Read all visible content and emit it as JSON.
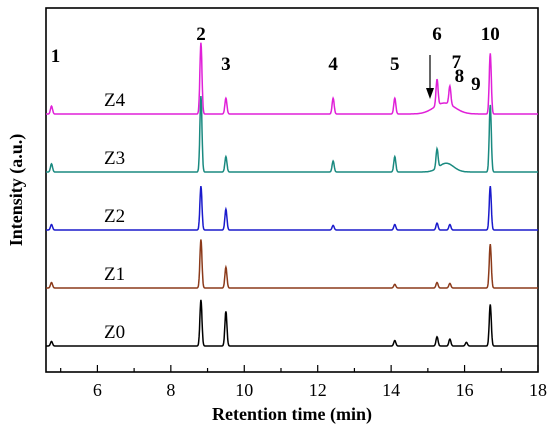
{
  "chart_data": {
    "type": "line",
    "xlabel": "Retention time (min)",
    "ylabel": "Intensity (a.u.)",
    "xlim": [
      4.6,
      18
    ],
    "x_ticks": [
      "6",
      "8",
      "10",
      "12",
      "14",
      "16",
      "18"
    ],
    "y_ticks_shown": false,
    "grid": false,
    "series": [
      {
        "name": "Z4",
        "color": "#e020d8",
        "offset": 4.0,
        "scale": 1.2,
        "peaks": [
          [
            4.75,
            0.15
          ],
          [
            8.82,
            1.35
          ],
          [
            9.5,
            0.3
          ],
          [
            12.42,
            0.3
          ],
          [
            14.1,
            0.3
          ],
          [
            15.25,
            0.5
          ],
          [
            15.6,
            0.35
          ],
          [
            16.7,
            1.15
          ]
        ],
        "hump": [
          15.45,
          0.25,
          0.28
        ]
      },
      {
        "name": "Z3",
        "color": "#1a8a80",
        "offset": 3.0,
        "scale": 1.25,
        "peaks": [
          [
            4.75,
            0.15
          ],
          [
            8.82,
            1.38
          ],
          [
            9.5,
            0.28
          ],
          [
            12.42,
            0.2
          ],
          [
            14.1,
            0.28
          ],
          [
            15.25,
            0.35
          ],
          [
            16.7,
            1.22
          ]
        ],
        "hump": [
          15.5,
          0.2,
          0.2
        ]
      },
      {
        "name": "Z2",
        "color": "#1a1acc",
        "offset": 2.0,
        "scale": 1.05,
        "peaks": [
          [
            4.75,
            0.12
          ],
          [
            8.82,
            0.95
          ],
          [
            9.5,
            0.45
          ],
          [
            12.42,
            0.1
          ],
          [
            14.1,
            0.12
          ],
          [
            15.25,
            0.15
          ],
          [
            15.6,
            0.12
          ],
          [
            16.7,
            0.95
          ]
        ]
      },
      {
        "name": "Z1",
        "color": "#8b3a1a",
        "offset": 1.0,
        "scale": 1.05,
        "peaks": [
          [
            4.75,
            0.12
          ],
          [
            8.82,
            1.05
          ],
          [
            9.5,
            0.45
          ],
          [
            14.1,
            0.08
          ],
          [
            15.25,
            0.12
          ],
          [
            15.6,
            0.1
          ],
          [
            16.7,
            0.95
          ]
        ]
      },
      {
        "name": "Z0",
        "color": "#000000",
        "offset": 0.0,
        "scale": 1.05,
        "peaks": [
          [
            4.75,
            0.1
          ],
          [
            8.82,
            1.0
          ],
          [
            9.5,
            0.75
          ],
          [
            14.1,
            0.12
          ],
          [
            15.25,
            0.2
          ],
          [
            15.6,
            0.15
          ],
          [
            16.05,
            0.08
          ],
          [
            16.7,
            0.9
          ]
        ]
      }
    ],
    "peak_labels": [
      {
        "label": "1",
        "x": 4.75
      },
      {
        "label": "2",
        "x": 8.82
      },
      {
        "label": "3",
        "x": 9.5
      },
      {
        "label": "4",
        "x": 12.42
      },
      {
        "label": "5",
        "x": 14.1
      },
      {
        "label": "6",
        "x": 15.25
      },
      {
        "label": "7",
        "x": 15.45
      },
      {
        "label": "8",
        "x": 15.75
      },
      {
        "label": "9",
        "x": 16.2
      },
      {
        "label": "10",
        "x": 16.7
      }
    ]
  }
}
